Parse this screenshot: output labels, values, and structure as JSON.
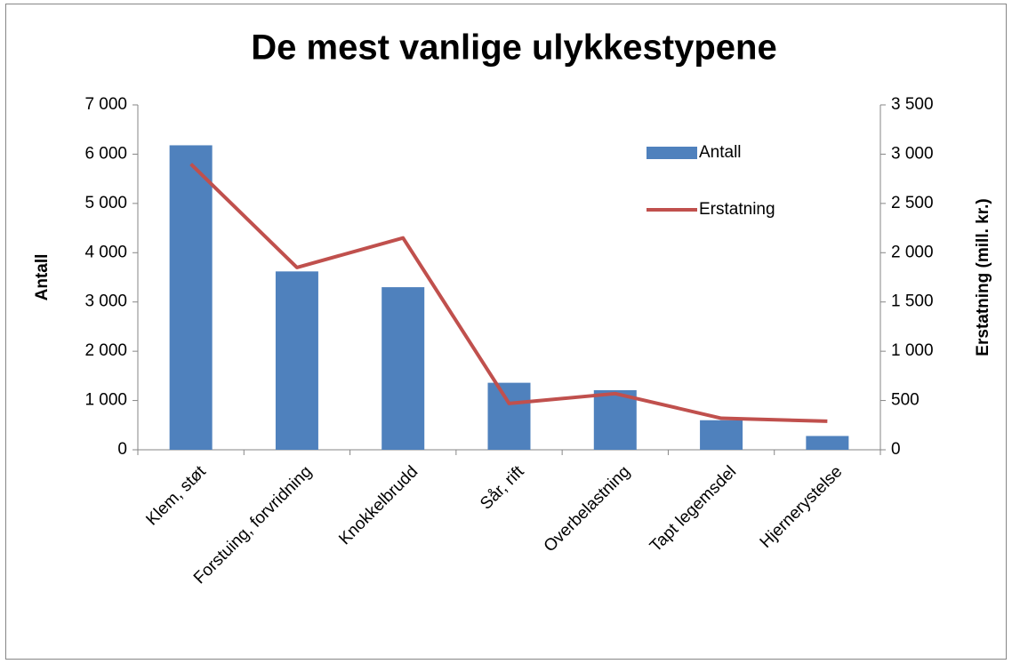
{
  "chart_data": {
    "type": "bar_line",
    "title": "De mest vanlige ulykkestypene",
    "ylabel": "Antall",
    "y2label": "Erstatning (mill. kr.)",
    "categories": [
      "Klem, støt",
      "Forstuing, forvridning",
      "Knokkelbrudd",
      "Sår, rift",
      "Overbelastning",
      "Tapt legemsdel",
      "Hjernerystelse"
    ],
    "series": [
      {
        "name": "Antall",
        "type": "bar",
        "color": "#4f81bd",
        "values": [
          6180,
          3620,
          3300,
          1360,
          1210,
          600,
          280
        ]
      },
      {
        "name": "Erstatning",
        "type": "line",
        "axis": "y2",
        "color": "#c0504d",
        "values": [
          2900,
          1850,
          2150,
          470,
          570,
          320,
          290
        ]
      }
    ],
    "ylim": [
      0,
      7000
    ],
    "yticks": [
      0,
      {
        "value": 1000,
        "label": "1 000"
      },
      {
        "value": 2000,
        "label": "2 000"
      },
      {
        "value": 3000,
        "label": "3 000"
      },
      {
        "value": 4000,
        "label": "4 000"
      },
      {
        "value": 5000,
        "label": "5 000"
      },
      {
        "value": 6000,
        "label": "6 000"
      },
      {
        "value": 7000,
        "label": "7 000"
      }
    ],
    "y2lim": [
      0,
      3500
    ],
    "y2ticks": [
      0,
      500,
      {
        "value": 1000,
        "label": "1 000"
      },
      {
        "value": 1500,
        "label": "1 500"
      },
      {
        "value": 2000,
        "label": "2 000"
      },
      {
        "value": 2500,
        "label": "2 500"
      },
      {
        "value": 3000,
        "label": "3 000"
      },
      {
        "value": 3500,
        "label": "3 500"
      }
    ],
    "grid": false,
    "legend": "upper right"
  }
}
